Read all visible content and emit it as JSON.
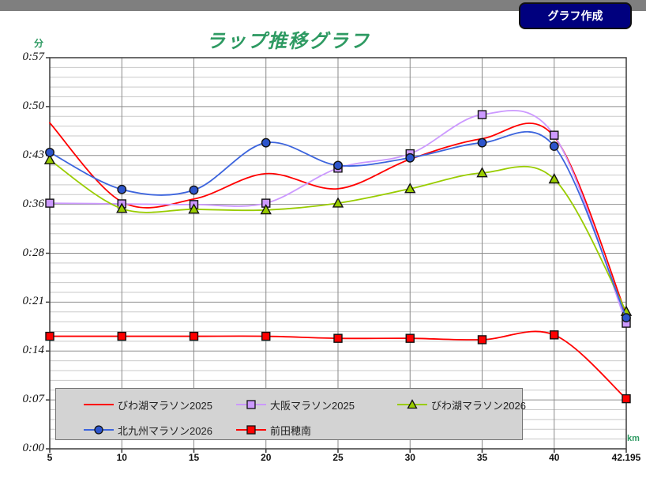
{
  "topbar": {
    "color": "#7f7f7f"
  },
  "toolbar": {
    "create_button_label": "グラフ作成",
    "button_color": "#00007e",
    "button_text_color": "#ffffff"
  },
  "axis_units": {
    "y_unit": "分",
    "x_unit": "km",
    "unit_color": "#2e9a62"
  },
  "chart_data": {
    "type": "line",
    "title": "ラップ推移グラフ",
    "title_color": "#2e9a62",
    "xlabel": "km",
    "ylabel": "分",
    "categories": [
      "5",
      "10",
      "15",
      "20",
      "25",
      "30",
      "35",
      "40",
      "42.195"
    ],
    "y_axis": {
      "min": 0,
      "max": 57,
      "tick_labels_top_to_bottom": [
        "0:57",
        "0:50",
        "0:43",
        "0:36",
        "0:28",
        "0:21",
        "0:14",
        "0:07",
        "0:00"
      ],
      "minor_per_major": 5
    },
    "grid": true,
    "legend_position": "bottom-left-overlay",
    "legend_background": "#d3d3d3",
    "series": [
      {
        "name": "びわ湖マラソン2025",
        "color": "#ff0000",
        "marker": "none",
        "values": [
          47.5,
          36.0,
          36.4,
          40.1,
          37.9,
          42.2,
          45.2,
          45.5,
          19.6
        ]
      },
      {
        "name": "大阪マラソン2025",
        "color": "#cc99ff",
        "marker": "square",
        "marker_fill": "#cc99ff",
        "values": [
          35.8,
          35.7,
          35.6,
          35.8,
          40.9,
          43.0,
          48.7,
          45.7,
          18.3
        ]
      },
      {
        "name": "びわ湖マラソン2026",
        "color": "#99cc00",
        "marker": "triangle",
        "marker_fill": "#99cc00",
        "values": [
          42.1,
          35.0,
          34.9,
          34.8,
          35.8,
          37.9,
          40.2,
          39.3,
          20.0
        ]
      },
      {
        "name": "北九州マラソン2026",
        "color": "#3c64dd",
        "marker": "circle",
        "marker_fill": "#2d55cc",
        "values": [
          43.2,
          37.8,
          37.7,
          44.6,
          41.3,
          42.4,
          44.6,
          44.1,
          19.1
        ]
      },
      {
        "name": "前田穂南",
        "color": "#ff0000",
        "marker": "square",
        "marker_fill": "#ff0000",
        "values": [
          16.4,
          16.4,
          16.4,
          16.4,
          16.1,
          16.1,
          15.9,
          16.6,
          7.3
        ]
      }
    ]
  }
}
